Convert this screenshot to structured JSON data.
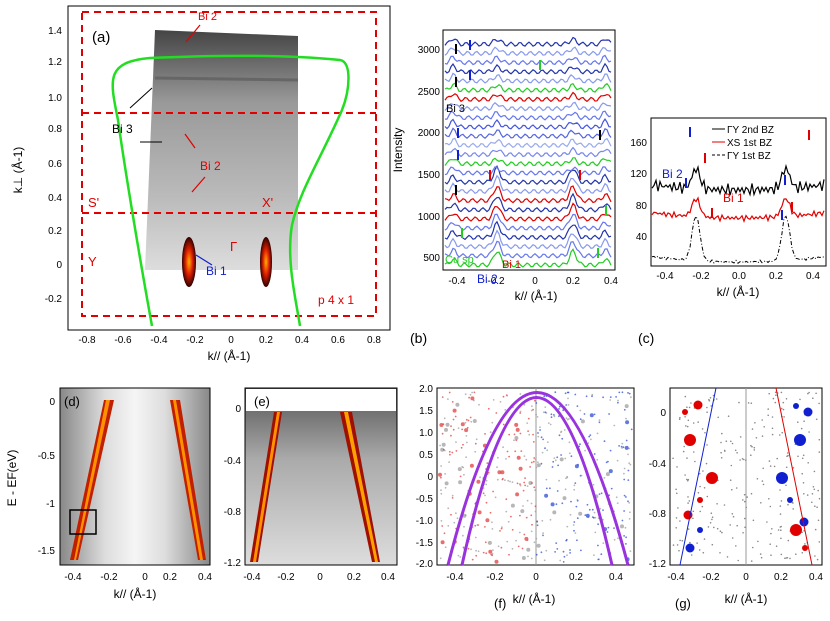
{
  "panel_a": {
    "label": "(a)",
    "xlabel": "k// (Å-1)",
    "ylabel": "k⊥ (Å-1)",
    "xticks": [
      "-0.8",
      "-0.6",
      "-0.4",
      "-0.2",
      "0",
      "0.2",
      "0.4",
      "0.6",
      "0.8"
    ],
    "yticks": [
      "1.4",
      "1.2",
      "1.0",
      "0.8",
      "0.6",
      "0.4",
      "0.2",
      "0",
      "-0.2"
    ],
    "annotations": {
      "bi2_top": "Bi 2",
      "bi3": "Bi 3",
      "bi2_mid": "Bi 2",
      "s_prime": "S'",
      "x_prime": "X'",
      "y": "Y",
      "gamma": "Γ",
      "bi1": "Bi 1",
      "reconstruction": "p 4 x 1"
    }
  },
  "panel_b": {
    "label": "(b)",
    "ylabel": "Intensity",
    "xlabel": "k// (Å-1)",
    "yticks": [
      "3000",
      "2500",
      "2000",
      "1500",
      "1000",
      "500"
    ],
    "xticks": [
      "-0.4",
      "-0.2",
      "0",
      "0.2",
      "0.4"
    ],
    "annotations": {
      "bi3": "Bi 3",
      "cu_sp": "Cu sp",
      "bi1": "Bi 1",
      "bi2": "Bi 2"
    }
  },
  "panel_c": {
    "label": "(c)",
    "yticks": [
      "160",
      "120",
      "80",
      "40"
    ],
    "xticks": [
      "-0.4",
      "-0.2",
      "0.0",
      "0.2",
      "0.4"
    ],
    "xlabel": "k// (Å-1)",
    "legend": [
      "ΓY 2nd BZ",
      "XS 1st BZ",
      "ΓY 1st BZ"
    ],
    "annotations": {
      "bi2": "Bi 2",
      "bi1": "Bi 1"
    }
  },
  "panel_d": {
    "label": "(d)",
    "ylabel": "E - EF(eV)",
    "yticks": [
      "0",
      "-0.5",
      "-1",
      "-1.5"
    ],
    "xticks": [
      "-0.4",
      "-0.2",
      "0",
      "0.2",
      "0.4"
    ],
    "xlabel": "k// (Å-1)"
  },
  "panel_e": {
    "label": "(e)",
    "yticks": [
      "0",
      "-0.4",
      "-0.8",
      "-1.2"
    ],
    "xticks": [
      "-0.4",
      "-0.2",
      "0",
      "0.2",
      "0.4"
    ]
  },
  "panel_f": {
    "label": "(f)",
    "yticks": [
      "2.0",
      "1.5",
      "1.0",
      "0.5",
      "0",
      "-0.5",
      "-1.0",
      "-1.5",
      "-2.0"
    ],
    "xticks": [
      "-0.4",
      "-0.2",
      "0",
      "0.2",
      "0.4"
    ],
    "xlabel": "k// (Å-1)"
  },
  "panel_g": {
    "label": "(g)",
    "yticks": [
      "0",
      "-0.4",
      "-0.8",
      "-1.2"
    ],
    "xticks": [
      "-0.4",
      "-0.2",
      "0",
      "0.2",
      "0.4"
    ],
    "xlabel": "k// (Å-1)"
  },
  "colors": {
    "green": "#22dd22",
    "red": "#e00000",
    "blue": "#1020d0",
    "purple": "#9933dd"
  }
}
